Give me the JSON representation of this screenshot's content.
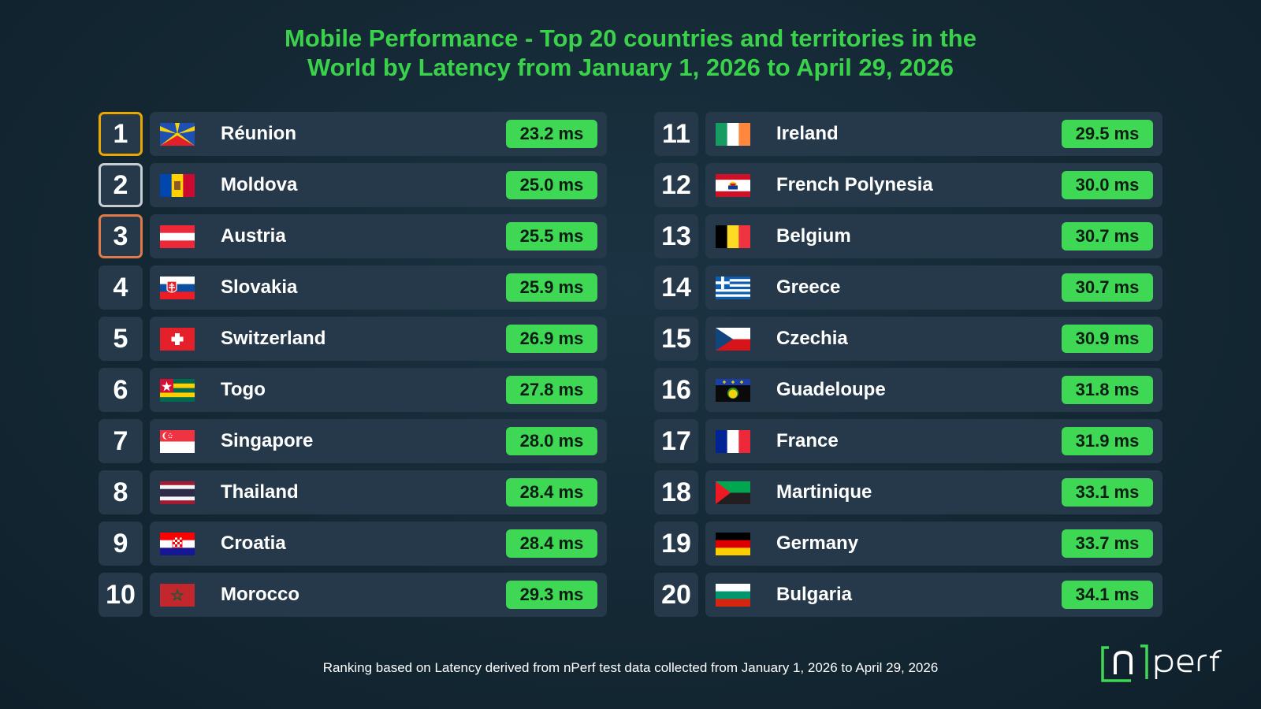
{
  "title_line1": "Mobile Performance - Top 20 countries and territories in the",
  "title_line2": "World by Latency from January 1, 2026 to April 29, 2026",
  "footer": "Ranking based on Latency derived from nPerf test data collected from January 1, 2026 to April 29, 2026",
  "logo_text": "nperf",
  "colors": {
    "accent": "#3ed855",
    "title": "#39d24a",
    "row_bg": "#26394a",
    "gold": "#e8a800",
    "silver": "#c5cdd3",
    "bronze": "#e07a4a"
  },
  "chart_data": {
    "type": "table",
    "title": "Mobile Performance - Top 20 countries and territories in the World by Latency from January 1, 2026 to April 29, 2026",
    "columns": [
      "rank",
      "country",
      "latency"
    ],
    "rows": [
      {
        "rank": "1",
        "country": "Réunion",
        "value": "23.2 ms",
        "flag": "reunion-flag"
      },
      {
        "rank": "2",
        "country": "Moldova",
        "value": "25.0 ms",
        "flag": "moldova-flag"
      },
      {
        "rank": "3",
        "country": "Austria",
        "value": "25.5 ms",
        "flag": "austria-flag"
      },
      {
        "rank": "4",
        "country": "Slovakia",
        "value": "25.9 ms",
        "flag": "slovakia-flag"
      },
      {
        "rank": "5",
        "country": "Switzerland",
        "value": "26.9 ms",
        "flag": "switzerland-flag"
      },
      {
        "rank": "6",
        "country": "Togo",
        "value": "27.8 ms",
        "flag": "togo-flag"
      },
      {
        "rank": "7",
        "country": "Singapore",
        "value": "28.0 ms",
        "flag": "singapore-flag"
      },
      {
        "rank": "8",
        "country": "Thailand",
        "value": "28.4 ms",
        "flag": "thailand-flag"
      },
      {
        "rank": "9",
        "country": "Croatia",
        "value": "28.4 ms",
        "flag": "croatia-flag"
      },
      {
        "rank": "10",
        "country": "Morocco",
        "value": "29.3 ms",
        "flag": "morocco-flag"
      },
      {
        "rank": "11",
        "country": "Ireland",
        "value": "29.5 ms",
        "flag": "ireland-flag"
      },
      {
        "rank": "12",
        "country": "French Polynesia",
        "value": "30.0 ms",
        "flag": "french-polynesia-flag"
      },
      {
        "rank": "13",
        "country": "Belgium",
        "value": "30.7 ms",
        "flag": "belgium-flag"
      },
      {
        "rank": "14",
        "country": "Greece",
        "value": "30.7 ms",
        "flag": "greece-flag"
      },
      {
        "rank": "15",
        "country": "Czechia",
        "value": "30.9 ms",
        "flag": "czechia-flag"
      },
      {
        "rank": "16",
        "country": "Guadeloupe",
        "value": "31.8 ms",
        "flag": "guadeloupe-flag"
      },
      {
        "rank": "17",
        "country": "France",
        "value": "31.9 ms",
        "flag": "france-flag"
      },
      {
        "rank": "18",
        "country": "Martinique",
        "value": "33.1 ms",
        "flag": "martinique-flag"
      },
      {
        "rank": "19",
        "country": "Germany",
        "value": "33.7 ms",
        "flag": "germany-flag"
      },
      {
        "rank": "20",
        "country": "Bulgaria",
        "value": "34.1 ms",
        "flag": "bulgaria-flag"
      }
    ]
  }
}
